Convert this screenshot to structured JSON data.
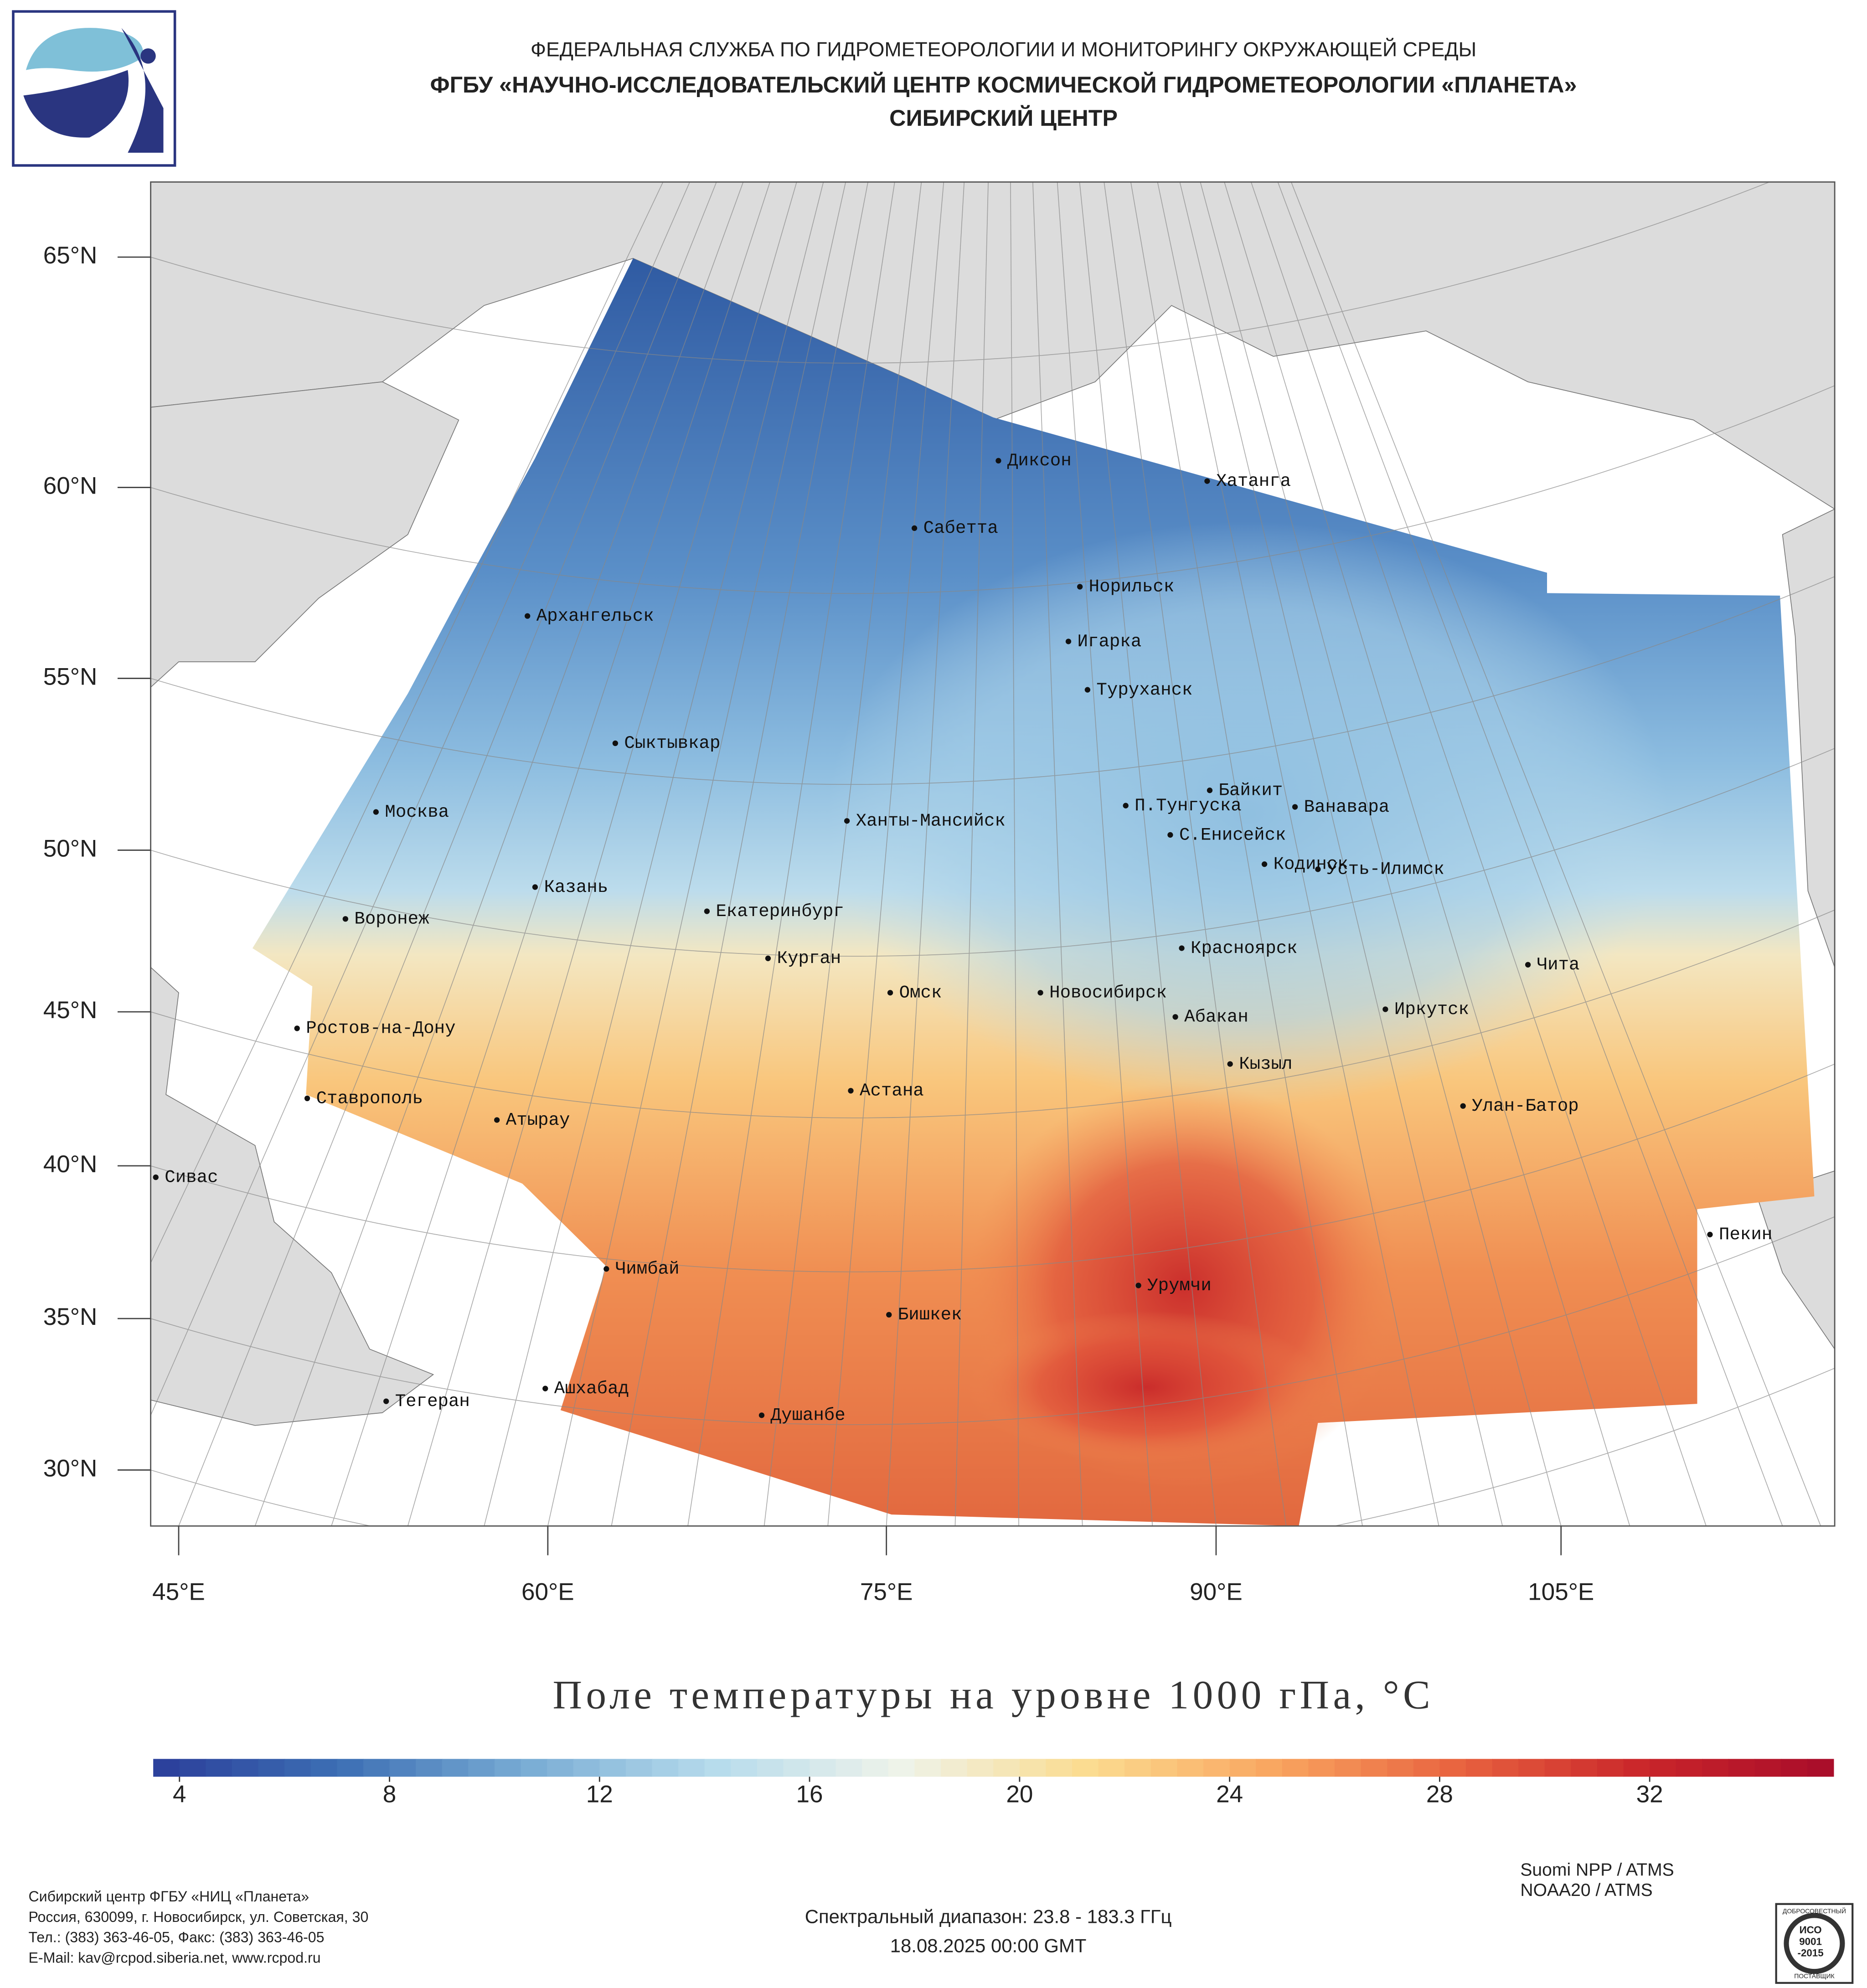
{
  "header": {
    "agency": "ФЕДЕРАЛЬНАЯ СЛУЖБА ПО ГИДРОМЕТЕОРОЛОГИИ И МОНИТОРИНГУ ОКРУЖАЮЩЕЙ СРЕДЫ",
    "institute": "ФГБУ «НАУЧНО-ИССЛЕДОВАТЕЛЬСКИЙ ЦЕНТР КОСМИЧЕСКОЙ ГИДРОМЕТЕОРОЛОГИИ «ПЛАНЕТА»",
    "center": "СИБИРСКИЙ ЦЕНТР"
  },
  "map": {
    "lat_labels": [
      "65°N",
      "60°N",
      "55°N",
      "50°N",
      "45°N",
      "40°N",
      "35°N",
      "30°N"
    ],
    "lon_labels": [
      "45°E",
      "60°E",
      "75°E",
      "90°E",
      "105°E"
    ],
    "cities": [
      "Диксон",
      "Хатанга",
      "Сабетта",
      "Норильск",
      "Архангельск",
      "Игарка",
      "Туруханск",
      "Сыктывкар",
      "Байкит",
      "Москва",
      "П.Тунгуска",
      "Ванавара",
      "Ханты-Мансийск",
      "С.Енисейск",
      "Кодинск",
      "Усть-Илимск",
      "Казань",
      "Екатеринбург",
      "Воронеж",
      "Красноярск",
      "Курган",
      "Чита",
      "Омск",
      "Новосибирск",
      "Ростов-на-Дону",
      "Иркутск",
      "Абакан",
      "Кызыл",
      "Астана",
      "Ставрополь",
      "Улан-Батор",
      "Атырау",
      "Сивас",
      "Пекин",
      "Чимбай",
      "Урумчи",
      "Бишкек",
      "Ашхабад",
      "Тегеран",
      "Душанбе"
    ]
  },
  "colorbar": {
    "title": "Поле температуры на уровне 1000 гПа, °C",
    "range": [
      3.5,
      35.5
    ],
    "ticks": [
      4,
      8,
      12,
      16,
      20,
      24,
      28,
      32
    ],
    "colors": [
      "#2b3d9a",
      "#3d6fb4",
      "#79acd4",
      "#b6dbec",
      "#eef3ea",
      "#fbdc90",
      "#f9a660",
      "#e8623f",
      "#c9252a",
      "#a80c2a"
    ]
  },
  "footer": {
    "address": [
      "Сибирский центр ФГБУ «НИЦ «Планета»",
      "Россия, 630099, г. Новосибирск, ул. Советская, 30",
      "Тел.: (383) 363-46-05, Факс: (383) 363-46-05",
      "E-Mail: kav@rcpod.siberia.net, www.rcpod.ru"
    ],
    "spectral": "Спектральный диапазон: 23.8 - 183.3 ГГц",
    "datetime": "18.08.2025 00:00 GMT",
    "satellites": [
      "Suomi NPP / ATMS",
      "NOAA20 / ATMS"
    ],
    "iso": [
      "ДОБРОСОВЕСТНЫЙ",
      "ИСО",
      "9001",
      "-2015",
      "ПОСТАВЩИК"
    ]
  }
}
